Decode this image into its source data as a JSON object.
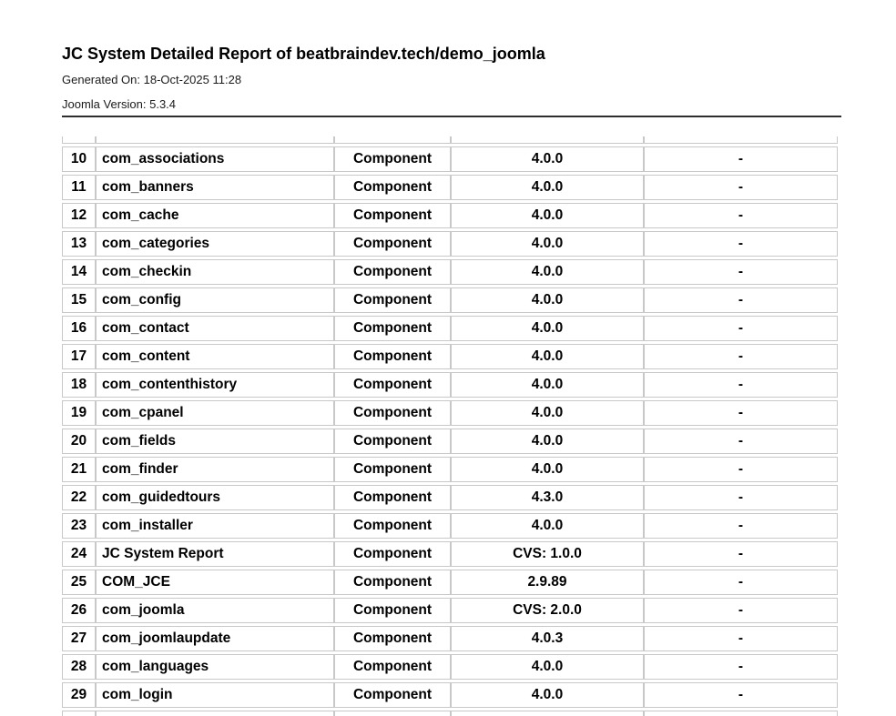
{
  "header": {
    "title": "JC System Detailed Report of beatbraindev.tech/demo_joomla",
    "generated_on": "Generated On: 18-Oct-2025 11:28",
    "joomla_version": "Joomla Version: 5.3.4"
  },
  "colors": {
    "rule": "#2e2e2e",
    "table_border": "#c8c8c8",
    "text": "#000000",
    "background": "#ffffff"
  },
  "table": {
    "columns": [
      "row_number",
      "extension_name",
      "extension_type",
      "version",
      "extra"
    ],
    "rows": [
      {
        "index": "10",
        "name": "com_associations",
        "type": "Component",
        "version": "4.0.0",
        "extra": "-"
      },
      {
        "index": "11",
        "name": "com_banners",
        "type": "Component",
        "version": "4.0.0",
        "extra": "-"
      },
      {
        "index": "12",
        "name": "com_cache",
        "type": "Component",
        "version": "4.0.0",
        "extra": "-"
      },
      {
        "index": "13",
        "name": "com_categories",
        "type": "Component",
        "version": "4.0.0",
        "extra": "-"
      },
      {
        "index": "14",
        "name": "com_checkin",
        "type": "Component",
        "version": "4.0.0",
        "extra": "-"
      },
      {
        "index": "15",
        "name": "com_config",
        "type": "Component",
        "version": "4.0.0",
        "extra": "-"
      },
      {
        "index": "16",
        "name": "com_contact",
        "type": "Component",
        "version": "4.0.0",
        "extra": "-"
      },
      {
        "index": "17",
        "name": "com_content",
        "type": "Component",
        "version": "4.0.0",
        "extra": "-"
      },
      {
        "index": "18",
        "name": "com_contenthistory",
        "type": "Component",
        "version": "4.0.0",
        "extra": "-"
      },
      {
        "index": "19",
        "name": "com_cpanel",
        "type": "Component",
        "version": "4.0.0",
        "extra": "-"
      },
      {
        "index": "20",
        "name": "com_fields",
        "type": "Component",
        "version": "4.0.0",
        "extra": "-"
      },
      {
        "index": "21",
        "name": "com_finder",
        "type": "Component",
        "version": "4.0.0",
        "extra": "-"
      },
      {
        "index": "22",
        "name": "com_guidedtours",
        "type": "Component",
        "version": "4.3.0",
        "extra": "-"
      },
      {
        "index": "23",
        "name": "com_installer",
        "type": "Component",
        "version": "4.0.0",
        "extra": "-"
      },
      {
        "index": "24",
        "name": "JC System Report",
        "type": "Component",
        "version": "CVS: 1.0.0",
        "extra": "-"
      },
      {
        "index": "25",
        "name": "COM_JCE",
        "type": "Component",
        "version": "2.9.89",
        "extra": "-"
      },
      {
        "index": "26",
        "name": "com_joomla",
        "type": "Component",
        "version": "CVS: 2.0.0",
        "extra": "-"
      },
      {
        "index": "27",
        "name": "com_joomlaupdate",
        "type": "Component",
        "version": "4.0.3",
        "extra": "-"
      },
      {
        "index": "28",
        "name": "com_languages",
        "type": "Component",
        "version": "4.0.0",
        "extra": "-"
      },
      {
        "index": "29",
        "name": "com_login",
        "type": "Component",
        "version": "4.0.0",
        "extra": "-"
      }
    ]
  }
}
